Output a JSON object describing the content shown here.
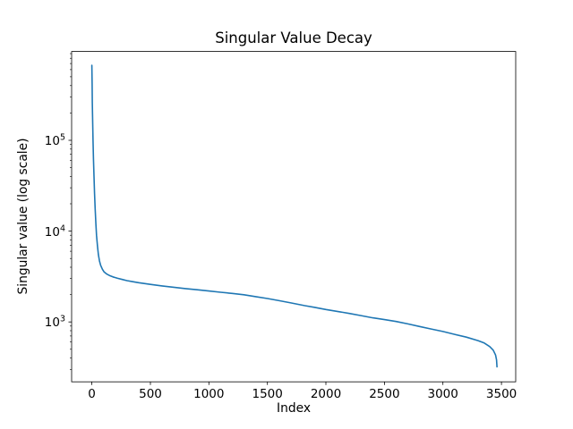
{
  "chart_data": {
    "type": "line",
    "title": "Singular Value Decay",
    "xlabel": "Index",
    "ylabel": "Singular value (log scale)",
    "xscale": "linear",
    "yscale": "log",
    "grid": false,
    "background": "#ffffff",
    "xlim": [
      -173,
      3622
    ],
    "ylim": [
      219,
      950000
    ],
    "xticks": [
      0,
      500,
      1000,
      1500,
      2000,
      2500,
      3000,
      3500
    ],
    "yticks": [
      {
        "value": 1000,
        "base": "10",
        "exp": "3"
      },
      {
        "value": 10000,
        "base": "10",
        "exp": "4"
      },
      {
        "value": 100000,
        "base": "10",
        "exp": "5"
      }
    ],
    "series": [
      {
        "name": "singular-values",
        "color": "#1f77b4",
        "line_width": 1.6,
        "points": [
          [
            0,
            670000
          ],
          [
            2,
            420000
          ],
          [
            4,
            260000
          ],
          [
            7,
            160000
          ],
          [
            10,
            100000
          ],
          [
            14,
            62000
          ],
          [
            18,
            40000
          ],
          [
            23,
            26000
          ],
          [
            28,
            17500
          ],
          [
            34,
            12000
          ],
          [
            40,
            9000
          ],
          [
            48,
            6800
          ],
          [
            56,
            5500
          ],
          [
            65,
            4700
          ],
          [
            75,
            4200
          ],
          [
            90,
            3800
          ],
          [
            105,
            3550
          ],
          [
            125,
            3380
          ],
          [
            150,
            3250
          ],
          [
            180,
            3130
          ],
          [
            220,
            3020
          ],
          [
            260,
            2930
          ],
          [
            300,
            2850
          ],
          [
            350,
            2770
          ],
          [
            400,
            2700
          ],
          [
            500,
            2590
          ],
          [
            600,
            2490
          ],
          [
            700,
            2410
          ],
          [
            800,
            2330
          ],
          [
            900,
            2260
          ],
          [
            1000,
            2190
          ],
          [
            1100,
            2120
          ],
          [
            1200,
            2060
          ],
          [
            1300,
            1990
          ],
          [
            1400,
            1900
          ],
          [
            1500,
            1810
          ],
          [
            1600,
            1715
          ],
          [
            1700,
            1620
          ],
          [
            1820,
            1510
          ],
          [
            1900,
            1450
          ],
          [
            2000,
            1370
          ],
          [
            2120,
            1290
          ],
          [
            2200,
            1240
          ],
          [
            2300,
            1175
          ],
          [
            2400,
            1110
          ],
          [
            2500,
            1060
          ],
          [
            2600,
            1010
          ],
          [
            2700,
            950
          ],
          [
            2800,
            890
          ],
          [
            2900,
            835
          ],
          [
            3000,
            785
          ],
          [
            3100,
            730
          ],
          [
            3200,
            680
          ],
          [
            3300,
            622
          ],
          [
            3350,
            588
          ],
          [
            3400,
            535
          ],
          [
            3430,
            488
          ],
          [
            3450,
            432
          ],
          [
            3458,
            382
          ],
          [
            3462,
            320
          ]
        ]
      }
    ]
  }
}
